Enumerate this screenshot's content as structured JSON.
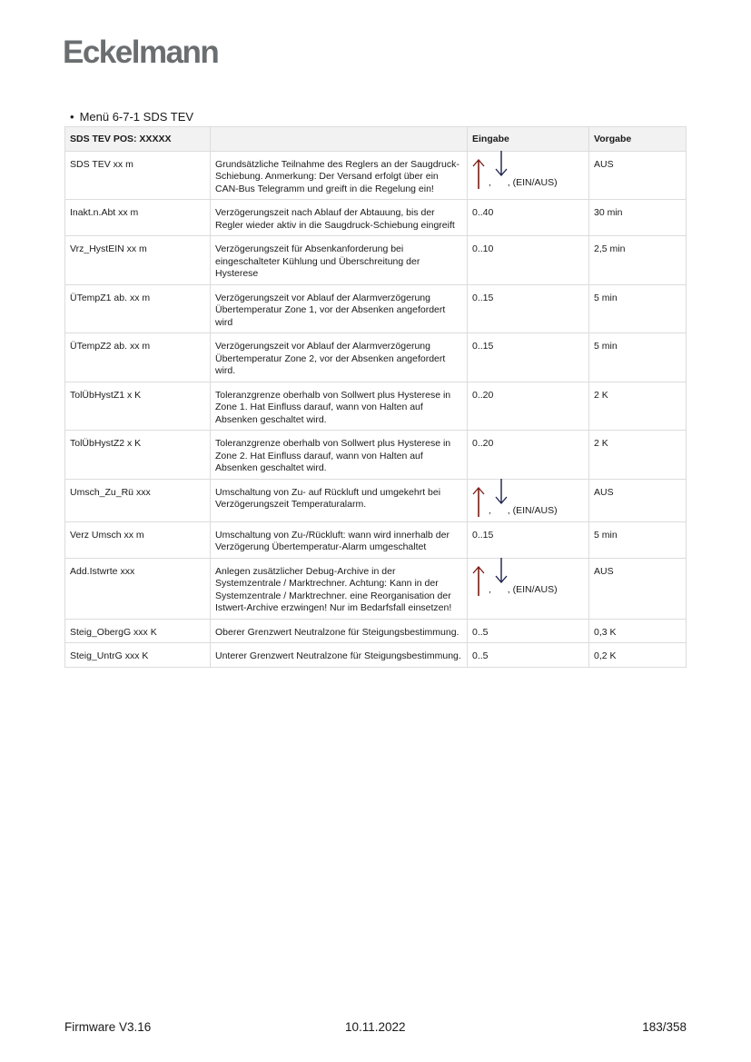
{
  "logo": "Eckelmann",
  "section_title": "Menü 6-7-1 SDS TEV",
  "table": {
    "headers": [
      "SDS TEV POS: XXXXX",
      "",
      "Eingabe",
      "Vorgabe"
    ],
    "rows": [
      {
        "param": "SDS TEV xx m",
        "desc": "Grundsätzliche Teilnahme des Reglers an der Saugdruck-Schiebung. Anmerkung: Der Versand erfolgt über ein CAN-Bus Telegramm und greift in die Regelung ein!",
        "input": ", (EIN/AUS)",
        "default": "AUS"
      },
      {
        "param": "Inakt.n.Abt xx m",
        "desc": "Verzögerungszeit nach Ablauf der Abtauung, bis der Regler wieder aktiv in die Saugdruck-Schiebung eingreift",
        "input": "0..40",
        "default": "30 min"
      },
      {
        "param": "Vrz_HystEIN xx m",
        "desc": "Verzögerungszeit für Absenkanforderung bei eingeschalteter Kühlung und Überschreitung der Hysterese",
        "input": "0..10",
        "default": "2,5 min"
      },
      {
        "param": "ÜTempZ1 ab. xx m",
        "desc": "Verzögerungszeit vor Ablauf der Alarmverzögerung Übertemperatur Zone 1, vor der Absenken angefordert wird",
        "input": "0..15",
        "default": "5 min"
      },
      {
        "param": "ÜTempZ2 ab. xx m",
        "desc": "Verzögerungszeit vor Ablauf der Alarmverzögerung Übertemperatur Zone 2, vor der Absenken angefordert wird.",
        "input": "0..15",
        "default": "5 min"
      },
      {
        "param": "TolÜbHystZ1 x K",
        "desc": "Toleranzgrenze oberhalb von Sollwert plus Hysterese in Zone 1. Hat Einfluss darauf, wann von Halten auf Absenken geschaltet wird.",
        "input": "0..20",
        "default": "2 K"
      },
      {
        "param": "TolÜbHystZ2 x K",
        "desc": "Toleranzgrenze oberhalb von Sollwert plus Hysterese in Zone 2. Hat Einfluss darauf, wann von Halten auf Absenken geschaltet wird.",
        "input": "0..20",
        "default": "2 K"
      },
      {
        "param": "Umsch_Zu_Rü xxx",
        "desc": "Umschaltung von Zu- auf Rückluft und umgekehrt bei Verzögerungszeit Temperaturalarm.",
        "input": ", (EIN/AUS)",
        "default": "AUS"
      },
      {
        "param": "Verz Umsch xx m",
        "desc": "Umschaltung von Zu-/Rückluft: wann wird innerhalb der Verzögerung Übertemperatur-Alarm umgeschaltet",
        "input": "0..15",
        "default": "5 min"
      },
      {
        "param": "Add.Istwrte xxx",
        "desc": "Anlegen zusätzlicher Debug-Archive in der Systemzentrale / Marktrechner. Achtung: Kann in der Systemzentrale / Marktrechner. eine Reorganisation der Istwert-Archive erzwingen! Nur im Bedarfsfall einsetzen!",
        "input": ", (EIN/AUS)",
        "default": "AUS"
      },
      {
        "param": "Steig_ObergG xxx K",
        "desc": "Oberer Grenzwert Neutralzone für Steigungsbestimmung.",
        "input": "0..5",
        "default": "0,3 K"
      },
      {
        "param": "Steig_UntrG xxx K",
        "desc": "Unterer Grenzwert Neutralzone für Steigungsbestimmung.",
        "input": "0..5",
        "default": "0,2 K"
      }
    ],
    "arrow_rows": [
      0,
      7,
      9
    ],
    "arrow_colors": {
      "up": "#7a1a10",
      "down": "#1a1f4a"
    },
    "arrow_separator": ","
  },
  "footer": {
    "firmware": "Firmware V3.16",
    "date": "10.11.2022",
    "page": "183/358"
  }
}
